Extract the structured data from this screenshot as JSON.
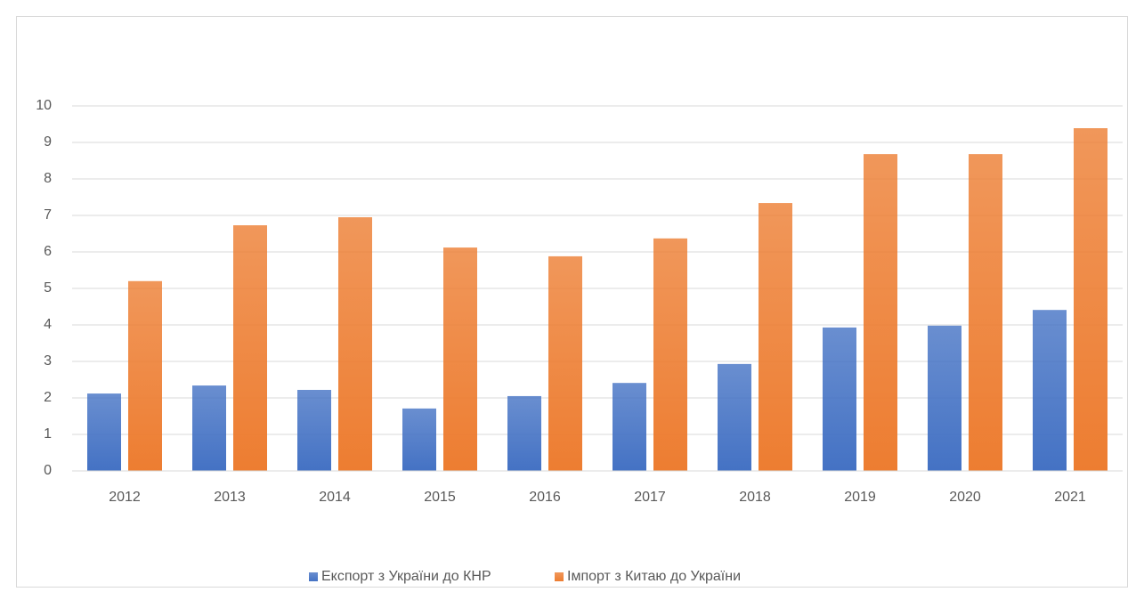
{
  "chart_data": {
    "type": "bar",
    "categories": [
      "2012",
      "2013",
      "2014",
      "2015",
      "2016",
      "2017",
      "2018",
      "2019",
      "2020",
      "2021"
    ],
    "series": [
      {
        "name": "Експорт з України до КНР",
        "color": "#4472c4",
        "values": [
          2.12,
          2.34,
          2.22,
          1.71,
          2.05,
          2.41,
          2.93,
          3.93,
          3.98,
          4.41
        ]
      },
      {
        "name": "Імпорт з Китаю до України",
        "color": "#ed7d31",
        "values": [
          5.2,
          6.73,
          6.95,
          6.12,
          5.88,
          6.37,
          7.34,
          8.68,
          8.68,
          9.39
        ]
      }
    ],
    "ylim": [
      0,
      10
    ],
    "yticks": [
      0,
      1,
      2,
      3,
      4,
      5,
      6,
      7,
      8,
      9,
      10
    ],
    "grid": true,
    "legend": "bottom"
  }
}
